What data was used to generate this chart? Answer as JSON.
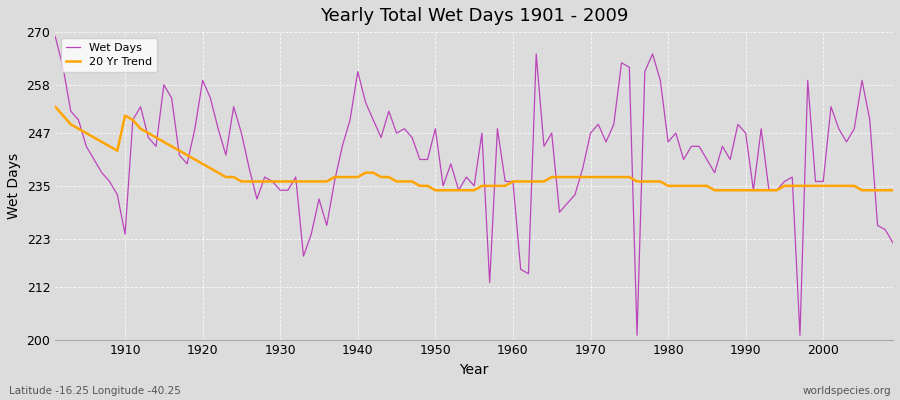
{
  "title": "Yearly Total Wet Days 1901 - 2009",
  "xlabel": "Year",
  "ylabel": "Wet Days",
  "xlim": [
    1901,
    2009
  ],
  "ylim": [
    200,
    270
  ],
  "yticks": [
    200,
    212,
    223,
    235,
    247,
    258,
    270
  ],
  "xticks": [
    1910,
    1920,
    1930,
    1940,
    1950,
    1960,
    1970,
    1980,
    1990,
    2000
  ],
  "bg_color": "#dcdcdc",
  "plot_bg_color": "#dcdcdc",
  "wet_days_color": "#bb44bb",
  "trend_color": "#ffa500",
  "footer_left": "Latitude -16.25 Longitude -40.25",
  "footer_right": "worldspecies.org",
  "years": [
    1901,
    1902,
    1903,
    1904,
    1905,
    1906,
    1907,
    1908,
    1909,
    1910,
    1911,
    1912,
    1913,
    1914,
    1915,
    1916,
    1917,
    1918,
    1919,
    1920,
    1921,
    1922,
    1923,
    1924,
    1925,
    1926,
    1927,
    1928,
    1929,
    1930,
    1931,
    1932,
    1933,
    1934,
    1935,
    1936,
    1937,
    1938,
    1939,
    1940,
    1941,
    1942,
    1943,
    1944,
    1945,
    1946,
    1947,
    1948,
    1949,
    1950,
    1951,
    1952,
    1953,
    1954,
    1955,
    1956,
    1957,
    1958,
    1959,
    1960,
    1961,
    1962,
    1963,
    1964,
    1965,
    1966,
    1967,
    1968,
    1969,
    1970,
    1971,
    1972,
    1973,
    1974,
    1975,
    1976,
    1977,
    1978,
    1979,
    1980,
    1981,
    1982,
    1983,
    1984,
    1985,
    1986,
    1987,
    1988,
    1989,
    1990,
    1991,
    1992,
    1993,
    1994,
    1995,
    1996,
    1997,
    1998,
    1999,
    2000,
    2001,
    2002,
    2003,
    2004,
    2005,
    2006,
    2007,
    2008,
    2009
  ],
  "wet_days": [
    269,
    262,
    252,
    250,
    244,
    241,
    238,
    236,
    233,
    224,
    250,
    253,
    246,
    244,
    258,
    255,
    242,
    240,
    248,
    259,
    255,
    248,
    242,
    253,
    247,
    239,
    232,
    237,
    236,
    234,
    234,
    237,
    219,
    224,
    232,
    226,
    236,
    244,
    250,
    261,
    254,
    250,
    246,
    252,
    247,
    248,
    246,
    241,
    241,
    248,
    235,
    240,
    234,
    237,
    235,
    247,
    213,
    248,
    236,
    236,
    216,
    215,
    265,
    244,
    247,
    229,
    231,
    233,
    239,
    247,
    249,
    245,
    249,
    263,
    262,
    201,
    261,
    265,
    259,
    245,
    247,
    241,
    244,
    244,
    241,
    238,
    244,
    241,
    249,
    247,
    234,
    248,
    234,
    234,
    236,
    237,
    201,
    259,
    236,
    236,
    253,
    248,
    245,
    248,
    259,
    250,
    226,
    225,
    222
  ],
  "trend": [
    253,
    251,
    249,
    248,
    247,
    246,
    245,
    244,
    243,
    251,
    250,
    248,
    247,
    246,
    245,
    244,
    243,
    242,
    241,
    240,
    239,
    238,
    237,
    237,
    236,
    236,
    236,
    236,
    236,
    236,
    236,
    236,
    236,
    236,
    236,
    236,
    237,
    237,
    237,
    237,
    238,
    238,
    237,
    237,
    236,
    236,
    236,
    235,
    235,
    234,
    234,
    234,
    234,
    234,
    234,
    235,
    235,
    235,
    235,
    236,
    236,
    236,
    236,
    236,
    237,
    237,
    237,
    237,
    237,
    237,
    237,
    237,
    237,
    237,
    237,
    236,
    236,
    236,
    236,
    235,
    235,
    235,
    235,
    235,
    235,
    234,
    234,
    234,
    234,
    234,
    234,
    234,
    234,
    234,
    235,
    235,
    235,
    235,
    235,
    235,
    235,
    235,
    235,
    235,
    234,
    234,
    234,
    234,
    234
  ]
}
